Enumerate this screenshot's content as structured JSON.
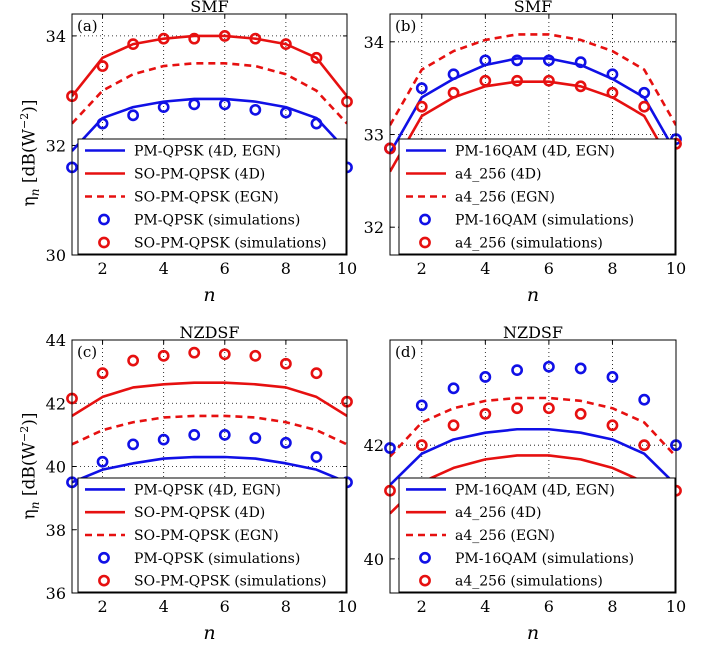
{
  "figure": {
    "ylabel_main": "η",
    "ylabel_sub": "n",
    "ylabel_rest": " [dB(W",
    "ylabel_sup": "−2",
    "ylabel_end": ")]"
  },
  "colors": {
    "blue": "#1010e6",
    "red": "#e61010"
  },
  "chart_data": [
    {
      "id": "a",
      "type": "line",
      "panel_label": "(a)",
      "title": "SMF",
      "xlabel": "n",
      "ylabel": "ηn [dB(W−2)]",
      "xlim": [
        1,
        10
      ],
      "ylim": [
        30,
        34.4
      ],
      "xticks": [
        2,
        4,
        6,
        8,
        10
      ],
      "yticks": [
        30,
        32,
        34
      ],
      "grid": true,
      "legend_position": "bottom-right",
      "x": [
        1,
        2,
        3,
        4,
        5,
        6,
        7,
        8,
        9,
        10
      ],
      "series": [
        {
          "name": "PM-QPSK (4D, EGN)",
          "color": "blue",
          "style": "solid",
          "values": [
            31.9,
            32.5,
            32.7,
            32.8,
            32.85,
            32.85,
            32.8,
            32.7,
            32.5,
            31.9
          ]
        },
        {
          "name": "SO-PM-QPSK (4D)",
          "color": "red",
          "style": "solid",
          "values": [
            32.9,
            33.6,
            33.85,
            33.95,
            34.0,
            34.0,
            33.95,
            33.85,
            33.6,
            32.9
          ]
        },
        {
          "name": "SO-PM-QPSK (EGN)",
          "color": "red",
          "style": "dashed",
          "values": [
            32.4,
            33.0,
            33.3,
            33.45,
            33.5,
            33.5,
            33.45,
            33.3,
            33.0,
            32.4
          ]
        },
        {
          "name": "PM-QPSK (simulations)",
          "color": "blue",
          "style": "marker",
          "values": [
            31.6,
            32.4,
            32.55,
            32.7,
            32.75,
            32.75,
            32.65,
            32.6,
            32.4,
            31.6
          ]
        },
        {
          "name": "SO-PM-QPSK (simulations)",
          "color": "red",
          "style": "marker",
          "values": [
            32.9,
            33.45,
            33.85,
            33.95,
            33.95,
            34.0,
            33.95,
            33.85,
            33.6,
            32.8
          ]
        }
      ]
    },
    {
      "id": "b",
      "type": "line",
      "panel_label": "(b)",
      "title": "SMF",
      "xlabel": "n",
      "ylabel": "",
      "xlim": [
        1,
        10
      ],
      "ylim": [
        31.7,
        34.3
      ],
      "xticks": [
        2,
        4,
        6,
        8,
        10
      ],
      "yticks": [
        32,
        33,
        34
      ],
      "grid": true,
      "legend_position": "bottom-right",
      "x": [
        1,
        2,
        3,
        4,
        5,
        6,
        7,
        8,
        9,
        10
      ],
      "series": [
        {
          "name": "PM-16QAM (4D, EGN)",
          "color": "blue",
          "style": "solid",
          "values": [
            32.8,
            33.4,
            33.6,
            33.75,
            33.82,
            33.82,
            33.75,
            33.6,
            33.4,
            32.8
          ]
        },
        {
          "name": "a4_256 (4D)",
          "color": "red",
          "style": "solid",
          "values": [
            32.6,
            33.2,
            33.4,
            33.52,
            33.57,
            33.57,
            33.52,
            33.4,
            33.2,
            32.6
          ]
        },
        {
          "name": "a4_256 (EGN)",
          "color": "red",
          "style": "dashed",
          "values": [
            33.1,
            33.7,
            33.9,
            34.02,
            34.08,
            34.08,
            34.02,
            33.9,
            33.7,
            33.1
          ]
        },
        {
          "name": "PM-16QAM (simulations)",
          "color": "blue",
          "style": "marker",
          "values": [
            32.85,
            33.5,
            33.65,
            33.8,
            33.8,
            33.8,
            33.78,
            33.65,
            33.45,
            32.95
          ]
        },
        {
          "name": "a4_256 (simulations)",
          "color": "red",
          "style": "marker",
          "values": [
            32.85,
            33.3,
            33.45,
            33.58,
            33.58,
            33.58,
            33.52,
            33.45,
            33.3,
            32.9
          ]
        }
      ]
    },
    {
      "id": "c",
      "type": "line",
      "panel_label": "(c)",
      "title": "NZDSF",
      "xlabel": "n",
      "ylabel": "ηn [dB(W−2)]",
      "xlim": [
        1,
        10
      ],
      "ylim": [
        36,
        44
      ],
      "xticks": [
        2,
        4,
        6,
        8,
        10
      ],
      "yticks": [
        36,
        38,
        40,
        42,
        44
      ],
      "grid": true,
      "legend_position": "bottom-right",
      "x": [
        1,
        2,
        3,
        4,
        5,
        6,
        7,
        8,
        9,
        10
      ],
      "series": [
        {
          "name": "PM-QPSK (4D, EGN)",
          "color": "blue",
          "style": "solid",
          "values": [
            39.5,
            39.9,
            40.1,
            40.25,
            40.3,
            40.3,
            40.25,
            40.1,
            39.9,
            39.5
          ]
        },
        {
          "name": "SO-PM-QPSK (4D)",
          "color": "red",
          "style": "solid",
          "values": [
            41.6,
            42.2,
            42.5,
            42.6,
            42.65,
            42.65,
            42.6,
            42.5,
            42.2,
            41.6
          ]
        },
        {
          "name": "SO-PM-QPSK (EGN)",
          "color": "red",
          "style": "dashed",
          "values": [
            40.7,
            41.15,
            41.4,
            41.55,
            41.6,
            41.6,
            41.55,
            41.4,
            41.15,
            40.7
          ]
        },
        {
          "name": "PM-QPSK (simulations)",
          "color": "blue",
          "style": "marker",
          "values": [
            39.5,
            40.15,
            40.7,
            40.85,
            41.0,
            41.0,
            40.9,
            40.75,
            40.3,
            39.5
          ]
        },
        {
          "name": "SO-PM-QPSK (simulations)",
          "color": "red",
          "style": "marker",
          "values": [
            42.15,
            42.95,
            43.35,
            43.5,
            43.6,
            43.55,
            43.5,
            43.25,
            42.95,
            42.05
          ]
        }
      ]
    },
    {
      "id": "d",
      "type": "line",
      "panel_label": "(d)",
      "title": "NZDSF",
      "xlabel": "n",
      "ylabel": "",
      "xlim": [
        1,
        10
      ],
      "ylim": [
        39.4,
        43.85
      ],
      "xticks": [
        2,
        4,
        6,
        8,
        10
      ],
      "yticks": [
        40,
        42
      ],
      "grid": true,
      "legend_position": "bottom-right",
      "x": [
        1,
        2,
        3,
        4,
        5,
        6,
        7,
        8,
        9,
        10
      ],
      "series": [
        {
          "name": "PM-16QAM (4D, EGN)",
          "color": "blue",
          "style": "solid",
          "values": [
            41.3,
            41.85,
            42.1,
            42.22,
            42.28,
            42.28,
            42.22,
            42.1,
            41.85,
            41.3
          ]
        },
        {
          "name": "a4_256 (4D)",
          "color": "red",
          "style": "solid",
          "values": [
            40.8,
            41.35,
            41.6,
            41.75,
            41.82,
            41.82,
            41.75,
            41.6,
            41.35,
            40.8
          ]
        },
        {
          "name": "a4_256 (EGN)",
          "color": "red",
          "style": "dashed",
          "values": [
            41.8,
            42.4,
            42.65,
            42.78,
            42.83,
            42.83,
            42.78,
            42.65,
            42.4,
            41.8
          ]
        },
        {
          "name": "PM-16QAM (simulations)",
          "color": "blue",
          "style": "marker",
          "values": [
            41.95,
            42.7,
            43.0,
            43.2,
            43.32,
            43.38,
            43.35,
            43.2,
            42.8,
            42.0
          ]
        },
        {
          "name": "a4_256 (simulations)",
          "color": "red",
          "style": "marker",
          "values": [
            41.2,
            42.0,
            42.35,
            42.55,
            42.65,
            42.65,
            42.55,
            42.35,
            42.0,
            41.2
          ]
        }
      ]
    }
  ]
}
